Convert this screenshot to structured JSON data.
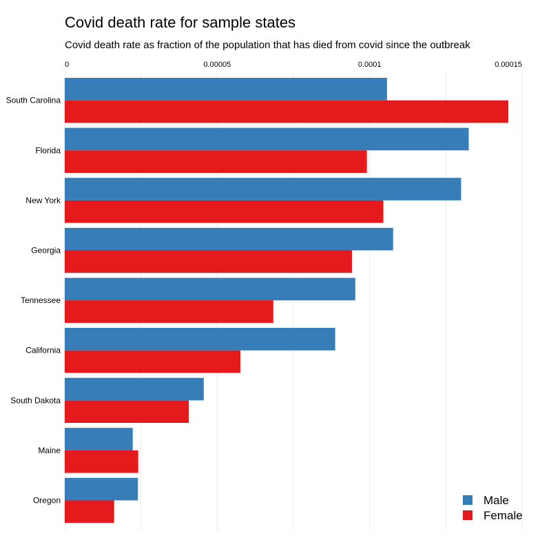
{
  "chart_data": {
    "type": "bar",
    "orientation": "horizontal",
    "title": "Covid death rate for sample states",
    "subtitle": "Covid death rate as fraction of the population that has died from covid since the outbreak",
    "xlabel": "",
    "ylabel": "",
    "xlim": [
      0,
      0.00015
    ],
    "x_ticks": [
      "0",
      "0.00005",
      "0.0001",
      "0.00015"
    ],
    "x_tick_values": [
      0,
      5e-05,
      0.0001,
      0.00015
    ],
    "x_axis_position": "top",
    "grid": true,
    "legend_position": "bottom-right",
    "categories": [
      "South Carolina",
      "Florida",
      "New York",
      "Georgia",
      "Tennessee",
      "California",
      "South Dakota",
      "Maine",
      "Oregon"
    ],
    "series": [
      {
        "name": "Male",
        "color": "#377eb8",
        "values": [
          0.0001057,
          0.0001325,
          0.00013,
          0.0001077,
          9.53e-05,
          8.87e-05,
          4.56e-05,
          2.23e-05,
          2.4e-05
        ]
      },
      {
        "name": "Female",
        "color": "#e41a1c",
        "values": [
          0.0001455,
          9.91e-05,
          0.0001045,
          9.42e-05,
          6.84e-05,
          5.76e-05,
          4.07e-05,
          2.41e-05,
          1.62e-05
        ]
      }
    ]
  }
}
